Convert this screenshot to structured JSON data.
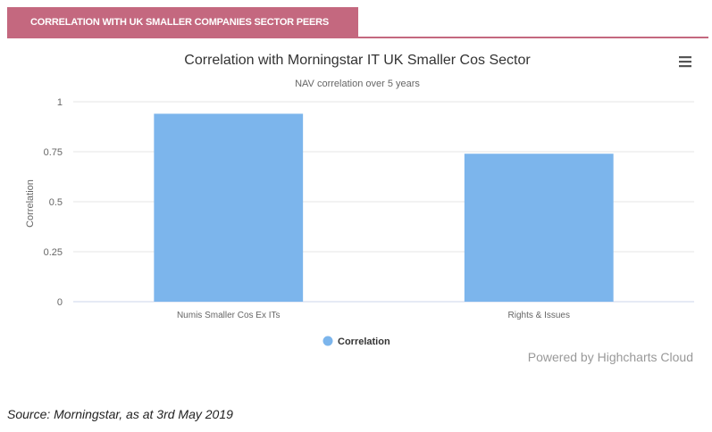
{
  "header": {
    "title": "CORRELATION WITH UK SMALLER COMPANIES SECTOR PEERS"
  },
  "colors": {
    "accent": "#c4687f",
    "bar": "#7cb5ec",
    "grid": "#e6e6e6",
    "text": "#333333"
  },
  "icons": {
    "menu": "hamburger-menu-icon"
  },
  "chart_data": {
    "type": "bar",
    "title": "Correlation with Morningstar IT UK Smaller Cos Sector",
    "subtitle": "NAV correlation over 5 years",
    "xlabel": "",
    "ylabel": "Correlation",
    "categories": [
      "Numis Smaller Cos Ex ITs",
      "Rights & Issues"
    ],
    "series": [
      {
        "name": "Correlation",
        "values": [
          0.94,
          0.74
        ]
      }
    ],
    "ylim": [
      0,
      1
    ],
    "yticks": [
      "0",
      "0.25",
      "0.5",
      "0.75",
      "1"
    ],
    "grid": true,
    "legend": "bottom-center",
    "credits": "Powered by Highcharts Cloud"
  },
  "footer": {
    "source": "Source: Morningstar, as at 3rd May 2019"
  }
}
